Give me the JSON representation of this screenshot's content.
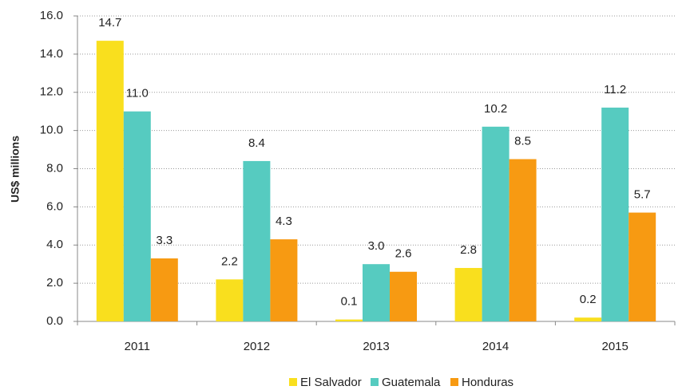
{
  "chart_data": {
    "type": "bar",
    "y_label": "US$ millions",
    "categories": [
      "2011",
      "2012",
      "2013",
      "2014",
      "2015"
    ],
    "series": [
      {
        "name": "El Salvador",
        "color": "#f9df1e",
        "values": [
          14.7,
          2.2,
          0.1,
          2.8,
          0.2
        ],
        "value_labels": [
          "14.7",
          "2.2",
          "0.1",
          "2.8",
          "0.2"
        ]
      },
      {
        "name": "Guatemala",
        "color": "#56cbc0",
        "values": [
          11,
          8.4,
          3,
          10.2,
          11.2
        ],
        "value_labels": [
          "11.0",
          "8.4",
          "3.0",
          "10.2",
          "11.2"
        ]
      },
      {
        "name": "Honduras",
        "color": "#f79a12",
        "values": [
          3.3,
          4.3,
          2.6,
          8.5,
          5.7
        ],
        "value_labels": [
          "3.3",
          "4.3",
          "2.6",
          "8.5",
          "5.7"
        ]
      }
    ],
    "ylim": [
      0,
      16
    ],
    "yticks": [
      {
        "value": 0,
        "label": "0.0"
      },
      {
        "value": 2,
        "label": "2.0"
      },
      {
        "value": 4,
        "label": "4.0"
      },
      {
        "value": 6,
        "label": "6.0"
      },
      {
        "value": 8,
        "label": "8.0"
      },
      {
        "value": 10,
        "label": "10.0"
      },
      {
        "value": 12,
        "label": "12.0"
      },
      {
        "value": 14,
        "label": "14.0"
      },
      {
        "value": 16,
        "label": "16.0"
      }
    ],
    "grid": true,
    "legend": "bottom"
  }
}
